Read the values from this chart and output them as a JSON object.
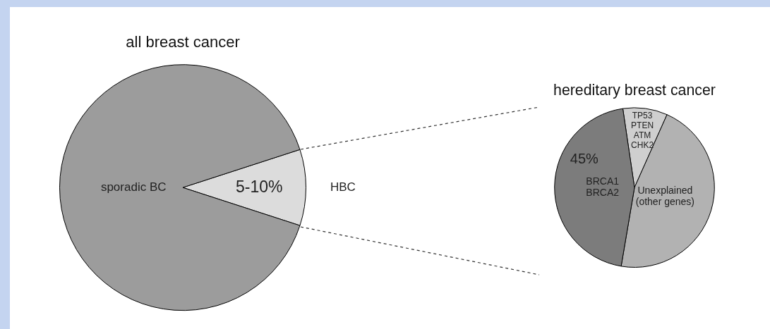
{
  "chart_data": [
    {
      "type": "pie",
      "title": "all breast cancer",
      "categories": [
        "HBC",
        "sporadic BC"
      ],
      "values": [
        10,
        90
      ],
      "annotations": [
        "5-10%"
      ],
      "colors": [
        "#dcdcdc",
        "#9c9c9c"
      ],
      "legend": false
    },
    {
      "type": "pie",
      "title": "hereditary breast cancer",
      "categories": [
        "TP53\nPTEN\nATM\nCHK2",
        "Unexplained\n(other genes)",
        "BRCA1\nBRCA2"
      ],
      "values": [
        9,
        46,
        45
      ],
      "value_labels": [
        null,
        null,
        "45%"
      ],
      "colors": [
        "#cfcfcf",
        "#b2b2b2",
        "#7c7c7c"
      ],
      "legend": false
    }
  ]
}
